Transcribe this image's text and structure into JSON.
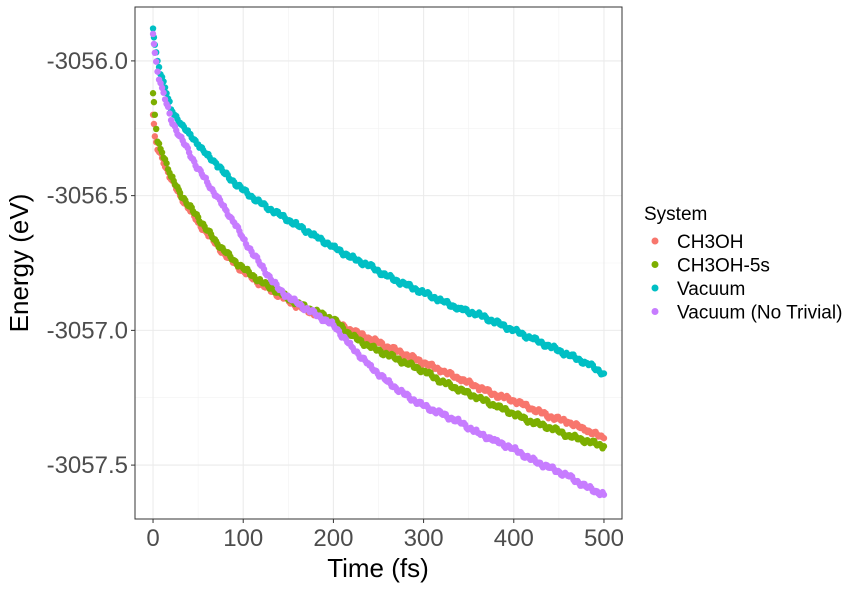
{
  "chart_data": {
    "type": "scatter",
    "title": "",
    "xlabel": "Time (fs)",
    "ylabel": "Energy (eV)",
    "xlim": [
      -20,
      520
    ],
    "ylim": [
      -3057.7,
      -3055.8
    ],
    "x_ticks": [
      0,
      100,
      200,
      300,
      400,
      500
    ],
    "x_tick_labels": [
      "0",
      "100",
      "200",
      "300",
      "400",
      "500"
    ],
    "y_ticks": [
      -3056.0,
      -3056.5,
      -3057.0,
      -3057.5
    ],
    "y_tick_labels": [
      "-3056.0",
      "-3056.5",
      "-3057.0",
      "-3057.5"
    ],
    "grid": true,
    "legend_title": "System",
    "legend_position": "right",
    "series": [
      {
        "name": "CH3OH",
        "color": "#F8766D",
        "x": [
          0,
          2,
          5,
          10,
          15,
          20,
          30,
          40,
          50,
          60,
          70,
          80,
          90,
          100,
          120,
          140,
          160,
          180,
          200,
          220,
          240,
          260,
          280,
          300,
          320,
          340,
          360,
          380,
          400,
          420,
          440,
          460,
          480,
          500
        ],
        "y": [
          -3056.2,
          -3056.28,
          -3056.33,
          -3056.36,
          -3056.4,
          -3056.44,
          -3056.5,
          -3056.55,
          -3056.6,
          -3056.64,
          -3056.68,
          -3056.72,
          -3056.75,
          -3056.78,
          -3056.83,
          -3056.87,
          -3056.91,
          -3056.94,
          -3056.97,
          -3057.0,
          -3057.03,
          -3057.06,
          -3057.09,
          -3057.12,
          -3057.15,
          -3057.18,
          -3057.21,
          -3057.24,
          -3057.26,
          -3057.29,
          -3057.32,
          -3057.34,
          -3057.37,
          -3057.4
        ]
      },
      {
        "name": "CH3OH-5s",
        "color": "#7CAE00",
        "x": [
          0,
          2,
          5,
          10,
          15,
          20,
          30,
          40,
          50,
          60,
          70,
          80,
          90,
          100,
          120,
          140,
          160,
          180,
          200,
          220,
          240,
          260,
          280,
          300,
          320,
          340,
          360,
          380,
          400,
          420,
          440,
          460,
          480,
          500
        ],
        "y": [
          -3056.12,
          -3056.2,
          -3056.3,
          -3056.34,
          -3056.38,
          -3056.43,
          -3056.49,
          -3056.54,
          -3056.58,
          -3056.63,
          -3056.67,
          -3056.71,
          -3056.74,
          -3056.77,
          -3056.82,
          -3056.86,
          -3056.9,
          -3056.93,
          -3056.96,
          -3057.02,
          -3057.06,
          -3057.09,
          -3057.12,
          -3057.15,
          -3057.19,
          -3057.22,
          -3057.25,
          -3057.28,
          -3057.31,
          -3057.34,
          -3057.36,
          -3057.39,
          -3057.41,
          -3057.43
        ]
      },
      {
        "name": "Vacuum",
        "color": "#00BFC4",
        "x": [
          0,
          2,
          5,
          10,
          15,
          20,
          30,
          40,
          50,
          60,
          70,
          80,
          90,
          100,
          120,
          140,
          160,
          180,
          200,
          220,
          240,
          260,
          280,
          300,
          320,
          340,
          360,
          380,
          400,
          420,
          440,
          460,
          480,
          500
        ],
        "y": [
          -3055.88,
          -3055.94,
          -3056.0,
          -3056.06,
          -3056.12,
          -3056.18,
          -3056.23,
          -3056.27,
          -3056.31,
          -3056.35,
          -3056.38,
          -3056.42,
          -3056.45,
          -3056.48,
          -3056.53,
          -3056.57,
          -3056.61,
          -3056.65,
          -3056.69,
          -3056.73,
          -3056.76,
          -3056.8,
          -3056.83,
          -3056.86,
          -3056.89,
          -3056.92,
          -3056.94,
          -3056.97,
          -3057.0,
          -3057.03,
          -3057.06,
          -3057.09,
          -3057.12,
          -3057.16
        ]
      },
      {
        "name": "Vacuum (No Trivial)",
        "color": "#C77CFF",
        "x": [
          0,
          2,
          5,
          10,
          15,
          20,
          30,
          40,
          50,
          60,
          70,
          80,
          90,
          100,
          120,
          140,
          160,
          180,
          200,
          220,
          240,
          260,
          280,
          300,
          320,
          340,
          360,
          380,
          400,
          420,
          440,
          460,
          480,
          500
        ],
        "y": [
          -3055.9,
          -3055.97,
          -3056.04,
          -3056.1,
          -3056.16,
          -3056.22,
          -3056.28,
          -3056.34,
          -3056.4,
          -3056.45,
          -3056.5,
          -3056.55,
          -3056.6,
          -3056.66,
          -3056.76,
          -3056.85,
          -3056.9,
          -3056.94,
          -3056.98,
          -3057.06,
          -3057.13,
          -3057.19,
          -3057.24,
          -3057.28,
          -3057.31,
          -3057.34,
          -3057.38,
          -3057.41,
          -3057.44,
          -3057.48,
          -3057.51,
          -3057.54,
          -3057.58,
          -3057.61
        ]
      }
    ]
  }
}
